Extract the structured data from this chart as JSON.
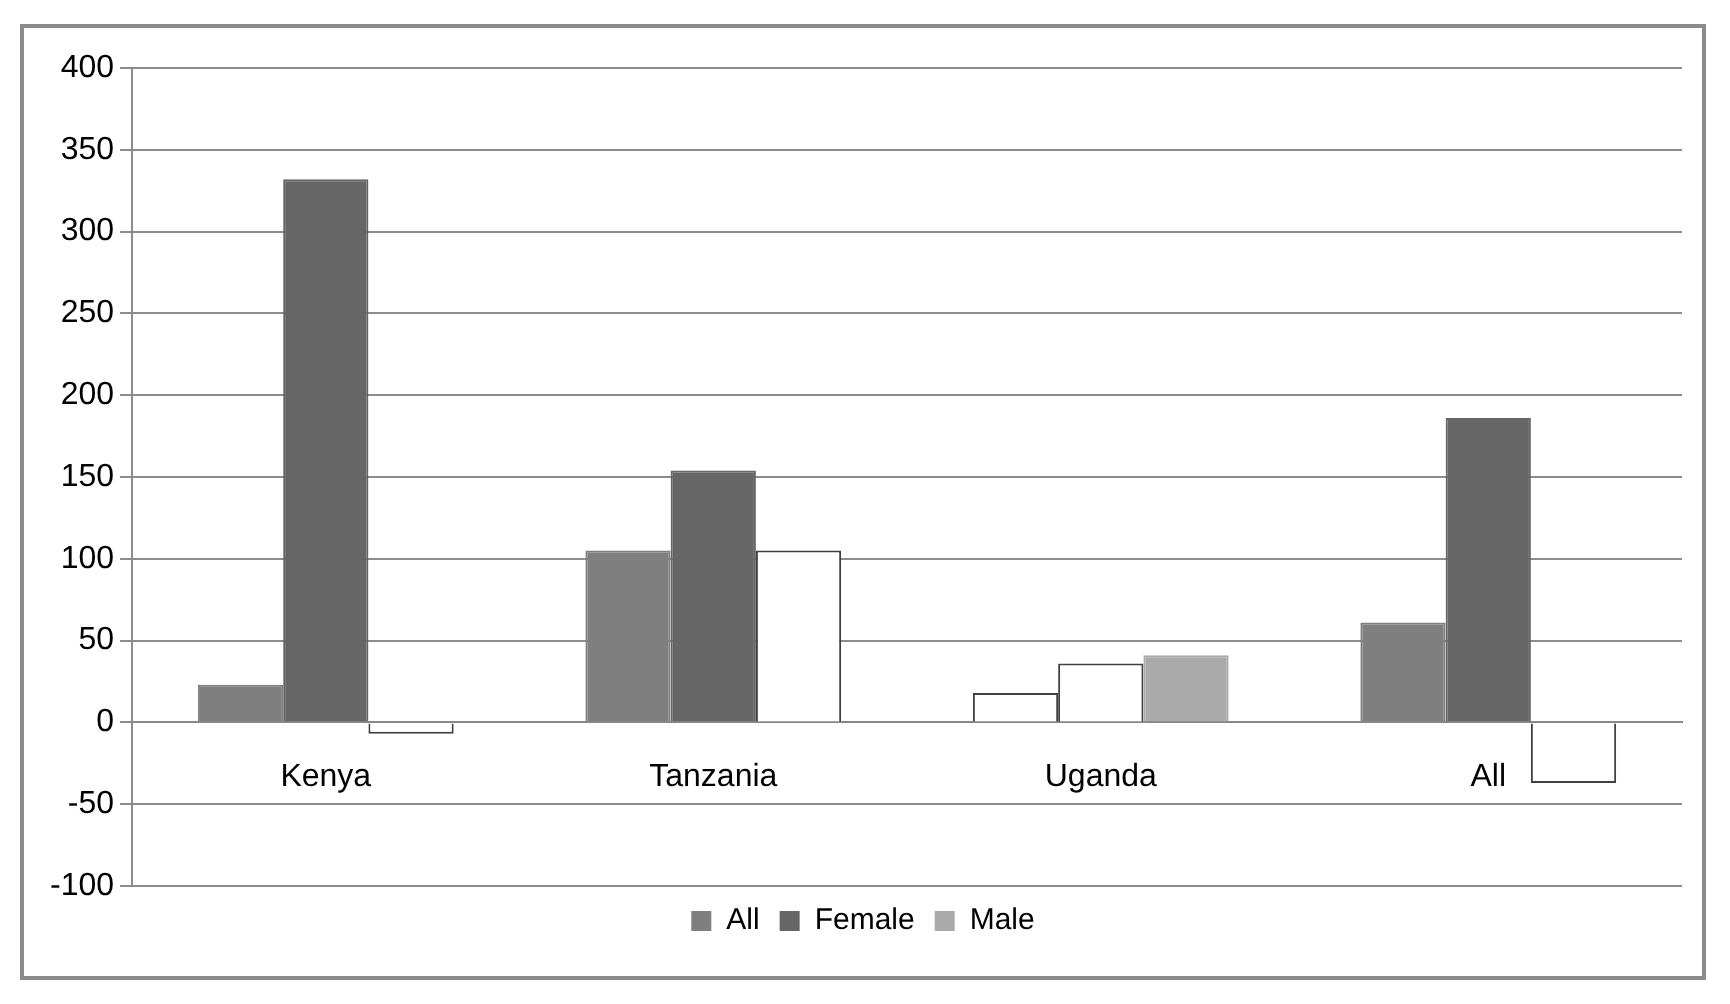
{
  "chart_data": {
    "type": "bar",
    "categories": [
      "Kenya",
      "Tanzania",
      "Uganda",
      "All"
    ],
    "series": [
      {
        "name": "All",
        "color": "#7f7f7f",
        "colors": [
          "#7f7f7f",
          "#7f7f7f",
          "#ffffff",
          "#7f7f7f"
        ],
        "values": [
          23,
          105,
          18,
          61
        ]
      },
      {
        "name": "Female",
        "color": "#666666",
        "colors": [
          "#666666",
          "#666666",
          "#ffffff",
          "#666666"
        ],
        "values": [
          332,
          154,
          36,
          186
        ]
      },
      {
        "name": "Male",
        "color": "#aaaaaa",
        "colors": [
          "#ffffff",
          "#ffffff",
          "#aaaaaa",
          "#ffffff"
        ],
        "values": [
          -7,
          105,
          41,
          -37
        ]
      }
    ],
    "ylim": [
      -100,
      400
    ],
    "yticks": [
      -100,
      -50,
      0,
      50,
      100,
      150,
      200,
      250,
      300,
      350,
      400
    ],
    "grid": "y",
    "legend": "bottom"
  }
}
